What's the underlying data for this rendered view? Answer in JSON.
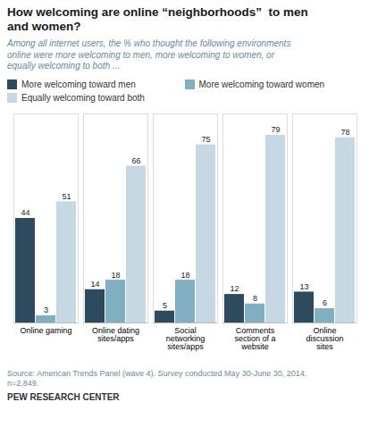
{
  "chart_data": {
    "type": "bar",
    "title": "How welcoming are online “neighborhoods”  to men\nand women?",
    "subtitle": "Among all internet users, the % who thought the following environments\nonline were more welcoming to men, more welcoming to women, or\nequally welcoming to both ...",
    "categories": [
      "Online gaming",
      "Online dating\nsites/apps",
      "Social\nnetworking\nsites/apps",
      "Comments\nsection of a\nwebsite",
      "Online\ndiscussion\nsites"
    ],
    "series": [
      {
        "name": "More welcoming toward men",
        "color": "#2d4a5e",
        "values": [
          44,
          14,
          5,
          12,
          13
        ]
      },
      {
        "name": "More welcoming toward women",
        "color": "#7fafc0",
        "values": [
          3,
          18,
          18,
          8,
          6
        ]
      },
      {
        "name": "Equally welcoming toward both",
        "color": "#c5d8e4",
        "values": [
          51,
          66,
          75,
          79,
          78
        ]
      }
    ],
    "ylim": [
      0,
      88
    ],
    "grid": false,
    "data_labels": true,
    "tick_labels": "x",
    "annotations": [
      "Source: American Trends Panel (wave 4). Survey conducted May 30-June 30, 2014.\nn=2,849.",
      "PEW RESEARCH CENTER"
    ]
  }
}
